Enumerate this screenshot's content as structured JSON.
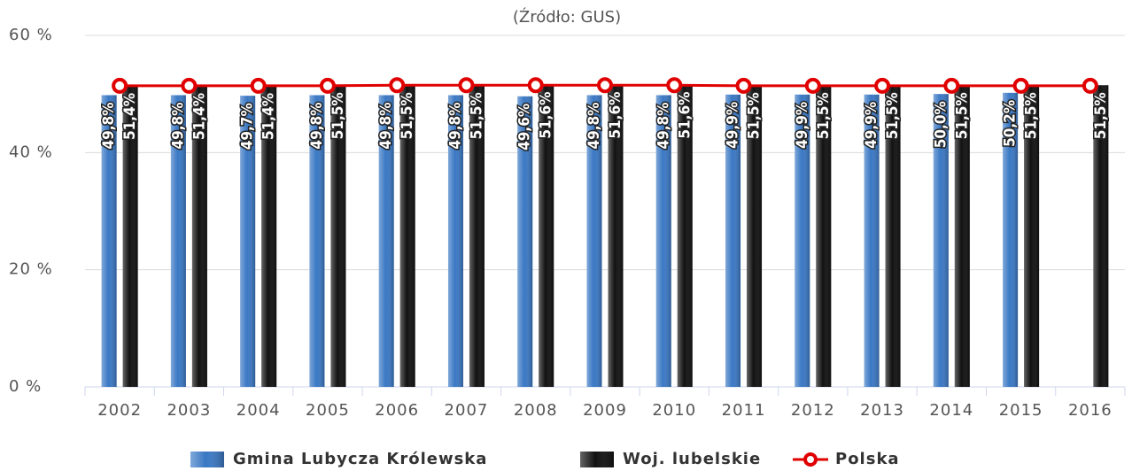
{
  "chart_data": {
    "type": "bar",
    "title": "(Źródło: GUS)",
    "categories": [
      "2002",
      "2003",
      "2004",
      "2005",
      "2006",
      "2007",
      "2008",
      "2009",
      "2010",
      "2011",
      "2012",
      "2013",
      "2014",
      "2015",
      "2016"
    ],
    "series": [
      {
        "name": "Gmina Lubycza Królewska",
        "color": "#3a78c4",
        "values": [
          49.8,
          49.8,
          49.7,
          49.8,
          49.8,
          49.8,
          49.6,
          49.8,
          49.8,
          49.9,
          49.9,
          49.9,
          50.0,
          50.2,
          null
        ],
        "value_labels": [
          "49,8%",
          "49,8%",
          "49,7%",
          "49,8%",
          "49,8%",
          "49,8%",
          "49,6%",
          "49,8%",
          "49,8%",
          "49,9%",
          "49,9%",
          "49,9%",
          "50,0%",
          "50,2%",
          null
        ]
      },
      {
        "name": "Woj. lubelskie",
        "color": "#111111",
        "values": [
          51.4,
          51.4,
          51.4,
          51.5,
          51.5,
          51.5,
          51.6,
          51.6,
          51.6,
          51.5,
          51.5,
          51.5,
          51.5,
          51.5,
          51.5
        ],
        "value_labels": [
          "51,4%",
          "51,4%",
          "51,4%",
          "51,5%",
          "51,5%",
          "51,5%",
          "51,6%",
          "51,6%",
          "51,6%",
          "51,5%",
          "51,5%",
          "51,5%",
          "51,5%",
          "51,5%",
          "51,5%"
        ]
      },
      {
        "name": "Polska",
        "color": "#e00000",
        "line": true,
        "values": [
          51.4,
          51.4,
          51.4,
          51.4,
          51.5,
          51.5,
          51.5,
          51.5,
          51.5,
          51.4,
          51.4,
          51.4,
          51.4,
          51.4,
          51.4
        ]
      }
    ],
    "ylim": [
      0,
      60
    ],
    "yticks": [
      {
        "value": 0,
        "label": "0 %"
      },
      {
        "value": 20,
        "label": "20 %"
      },
      {
        "value": 40,
        "label": "40 %"
      },
      {
        "value": 60,
        "label": "60 %"
      }
    ],
    "grid": true
  }
}
